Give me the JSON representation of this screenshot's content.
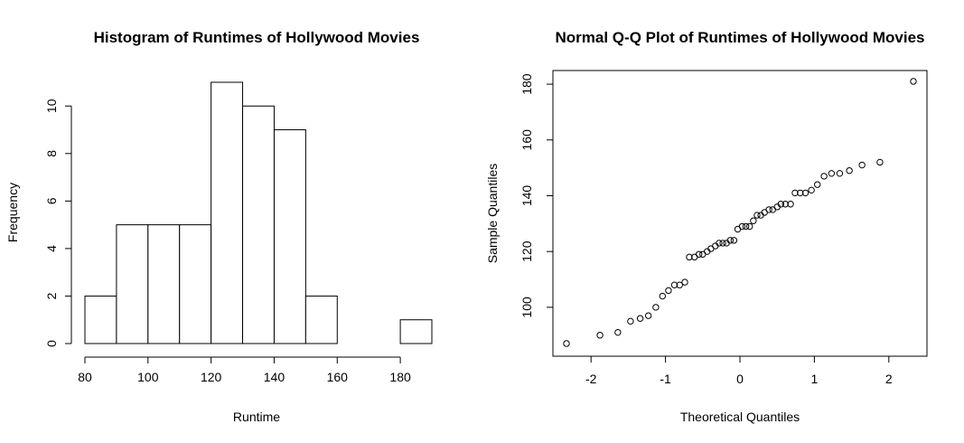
{
  "chart_data": [
    {
      "type": "bar",
      "title": "Histogram of Runtimes of Hollywood Movies",
      "xlabel": "Runtime",
      "ylabel": "Frequency",
      "bin_edges": [
        80,
        90,
        100,
        110,
        120,
        130,
        140,
        150,
        160,
        170,
        180,
        190
      ],
      "values": [
        2,
        5,
        5,
        5,
        11,
        10,
        9,
        2,
        0,
        0,
        1
      ],
      "xticks": [
        "80",
        "100",
        "120",
        "140",
        "160",
        "180"
      ],
      "yticks": [
        "0",
        "2",
        "4",
        "6",
        "8",
        "10"
      ],
      "xlim": [
        80,
        190
      ],
      "ylim": [
        0,
        11
      ]
    },
    {
      "type": "scatter",
      "title": "Normal Q-Q Plot of Runtimes of Hollywood Movies",
      "xlabel": "Theoretical Quantiles",
      "ylabel": "Sample Quantiles",
      "xticks": [
        "-2",
        "-1",
        "0",
        "1",
        "2"
      ],
      "yticks": [
        "100",
        "120",
        "140",
        "160",
        "180"
      ],
      "xlim": [
        -2.33,
        2.33
      ],
      "ylim": [
        87,
        181
      ],
      "points": [
        {
          "x": -2.33,
          "y": 87
        },
        {
          "x": -1.88,
          "y": 90
        },
        {
          "x": -1.64,
          "y": 91
        },
        {
          "x": -1.47,
          "y": 95
        },
        {
          "x": -1.34,
          "y": 96
        },
        {
          "x": -1.23,
          "y": 97
        },
        {
          "x": -1.13,
          "y": 100
        },
        {
          "x": -1.04,
          "y": 104
        },
        {
          "x": -0.96,
          "y": 106
        },
        {
          "x": -0.88,
          "y": 108
        },
        {
          "x": -0.81,
          "y": 108
        },
        {
          "x": -0.74,
          "y": 109
        },
        {
          "x": -0.68,
          "y": 118
        },
        {
          "x": -0.61,
          "y": 118
        },
        {
          "x": -0.55,
          "y": 119
        },
        {
          "x": -0.5,
          "y": 119
        },
        {
          "x": -0.44,
          "y": 120
        },
        {
          "x": -0.39,
          "y": 121
        },
        {
          "x": -0.33,
          "y": 122
        },
        {
          "x": -0.28,
          "y": 123
        },
        {
          "x": -0.23,
          "y": 123
        },
        {
          "x": -0.18,
          "y": 123
        },
        {
          "x": -0.13,
          "y": 124
        },
        {
          "x": -0.08,
          "y": 124
        },
        {
          "x": -0.03,
          "y": 128
        },
        {
          "x": 0.03,
          "y": 129
        },
        {
          "x": 0.08,
          "y": 129
        },
        {
          "x": 0.13,
          "y": 129
        },
        {
          "x": 0.18,
          "y": 131
        },
        {
          "x": 0.23,
          "y": 133
        },
        {
          "x": 0.28,
          "y": 133
        },
        {
          "x": 0.33,
          "y": 134
        },
        {
          "x": 0.39,
          "y": 135
        },
        {
          "x": 0.44,
          "y": 135
        },
        {
          "x": 0.5,
          "y": 136
        },
        {
          "x": 0.55,
          "y": 137
        },
        {
          "x": 0.61,
          "y": 137
        },
        {
          "x": 0.68,
          "y": 137
        },
        {
          "x": 0.74,
          "y": 141
        },
        {
          "x": 0.81,
          "y": 141
        },
        {
          "x": 0.88,
          "y": 141
        },
        {
          "x": 0.96,
          "y": 142
        },
        {
          "x": 1.04,
          "y": 144
        },
        {
          "x": 1.13,
          "y": 147
        },
        {
          "x": 1.23,
          "y": 148
        },
        {
          "x": 1.34,
          "y": 148
        },
        {
          "x": 1.47,
          "y": 149
        },
        {
          "x": 1.64,
          "y": 151
        },
        {
          "x": 1.88,
          "y": 152
        },
        {
          "x": 2.33,
          "y": 181
        }
      ]
    }
  ]
}
